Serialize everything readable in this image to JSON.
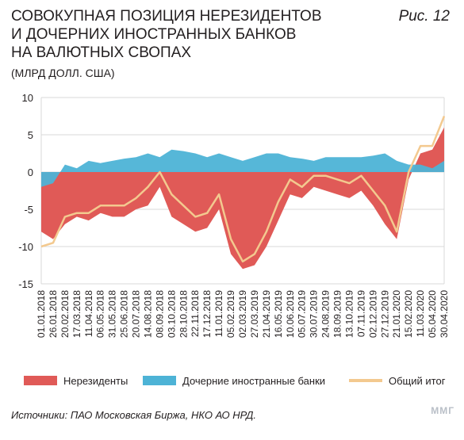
{
  "header": {
    "title_line1": "СОВОКУПНАЯ ПОЗИЦИЯ НЕРЕЗИДЕНТОВ",
    "title_line2": "И ДОЧЕРНИХ ИНОСТРАННЫХ БАНКОВ",
    "title_line3": "НА ВАЛЮТНЫХ СВОПАХ",
    "subtitle": "(МЛРД ДОЛЛ. США)",
    "figure_label": "Рис. 12"
  },
  "footer": {
    "source": "Источники: ПАО Московская Биржа, НКО АО НРД.",
    "watermark": "ММГ"
  },
  "colors": {
    "nonresidents": "#e05a57",
    "subsidiaries": "#4db3d6",
    "total": "#f3c98f",
    "grid": "#d9d9d9"
  },
  "chart_data": {
    "type": "area",
    "title": "СОВОКУПНАЯ ПОЗИЦИЯ НЕРЕЗИДЕНТОВ И ДОЧЕРНИХ ИНОСТРАННЫХ БАНКОВ НА ВАЛЮТНЫХ СВОПАХ",
    "subtitle": "(МЛРД ДОЛЛ. США)",
    "ylim": [
      -15,
      10
    ],
    "yticks": [
      10,
      5,
      0,
      -5,
      -10,
      -15
    ],
    "grid": "horizontal",
    "legend_position": "bottom",
    "x_tick_labels": [
      "01.01.2018",
      "26.01.2018",
      "20.02.2018",
      "17.03.2018",
      "11.04.2018",
      "06.05.2018",
      "31.05.2018",
      "25.06.2018",
      "20.07.2018",
      "14.08.2018",
      "08.09.2018",
      "03.10.2018",
      "28.10.2018",
      "22.11.2018",
      "17.12.2018",
      "11.01.2019",
      "05.02.2019",
      "02.03.2019",
      "27.03.2019",
      "21.04.2019",
      "16.05.2019",
      "10.06.2019",
      "05.07.2019",
      "30.07.2019",
      "24.08.2019",
      "18.09.2019",
      "13.10.2019",
      "07.11.2019",
      "02.12.2019",
      "27.12.2019",
      "21.01.2020",
      "15.02.2020",
      "11.03.2020",
      "05.04.2020",
      "30.04.2020"
    ],
    "x": [
      "01.01.2018",
      "26.01.2018",
      "20.02.2018",
      "17.03.2018",
      "11.04.2018",
      "06.05.2018",
      "31.05.2018",
      "25.06.2018",
      "20.07.2018",
      "14.08.2018",
      "08.09.2018",
      "03.10.2018",
      "28.10.2018",
      "22.11.2018",
      "17.12.2018",
      "11.01.2019",
      "05.02.2019",
      "02.03.2019",
      "27.03.2019",
      "21.04.2019",
      "16.05.2019",
      "10.06.2019",
      "05.07.2019",
      "30.07.2019",
      "24.08.2019",
      "18.09.2019",
      "13.10.2019",
      "07.11.2019",
      "02.12.2019",
      "27.12.2019",
      "21.01.2020",
      "15.02.2020",
      "11.03.2020",
      "05.04.2020",
      "30.04.2020"
    ],
    "series": [
      {
        "name": "Нерезиденты",
        "color": "#e05a57",
        "values": [
          -8,
          -9,
          -7,
          -6,
          -6.5,
          -5.5,
          -6,
          -6,
          -5,
          -4.5,
          -2,
          -6,
          -7,
          -8,
          -7.5,
          -5,
          -11,
          -13,
          -12.5,
          -10,
          -6.5,
          -3,
          -3.5,
          -2,
          -2.5,
          -3,
          -3.5,
          -2.5,
          -4.5,
          -7,
          -9,
          -1,
          2.5,
          3,
          6
        ]
      },
      {
        "name": "Дочерние иностранные банки",
        "color": "#4db3d6",
        "values": [
          -2,
          -1.5,
          1,
          0.5,
          1.5,
          1.2,
          1.5,
          1.8,
          2,
          2.5,
          2,
          3,
          2.8,
          2.5,
          2,
          2.5,
          2,
          1.5,
          2,
          2.5,
          2.5,
          2,
          1.8,
          1.5,
          2,
          2,
          2,
          2,
          2.2,
          2.5,
          1.5,
          1,
          1,
          0.5,
          1.5
        ]
      },
      {
        "name": "Общий итог",
        "color": "#f3c98f",
        "values": [
          -10,
          -9.5,
          -6,
          -5.5,
          -5.5,
          -4.5,
          -4.5,
          -4.5,
          -3.5,
          -2,
          0,
          -3,
          -4.5,
          -6,
          -5.5,
          -3,
          -9,
          -12,
          -11,
          -8,
          -4,
          -1,
          -2,
          -0.5,
          -0.5,
          -1,
          -1.5,
          -0.5,
          -2.5,
          -4.5,
          -8,
          0,
          3.5,
          3.5,
          7.5
        ]
      }
    ]
  },
  "legend": [
    {
      "label": "Нерезиденты"
    },
    {
      "label": "Дочерние иностранные банки"
    },
    {
      "label": "Общий итог"
    }
  ]
}
